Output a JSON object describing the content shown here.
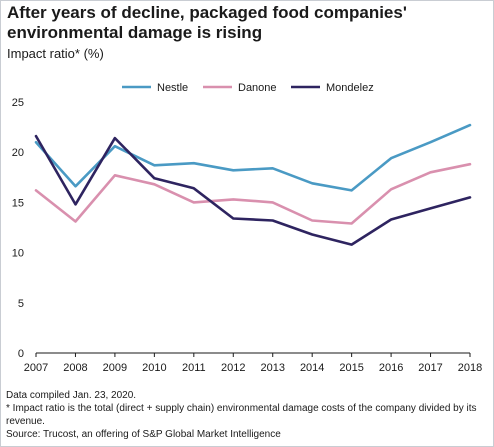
{
  "title": "After years of decline, packaged food companies' environmental damage is rising",
  "subtitle": "Impact ratio* (%)",
  "notes": {
    "compiled": "Data compiled Jan. 23, 2020.",
    "footnote": "* Impact ratio is the total (direct + supply chain) environmental damage costs of the company divided by its revenue.",
    "source": "Source: Trucost, an offering of S&P Global Market Intelligence"
  },
  "chart_data": {
    "type": "line",
    "x": [
      "2007",
      "2008",
      "2009",
      "2010",
      "2011",
      "2012",
      "2013",
      "2014",
      "2015",
      "2016",
      "2017",
      "2018"
    ],
    "ylim": [
      0,
      25
    ],
    "yticks": [
      "0",
      "5",
      "10",
      "15",
      "20",
      "25"
    ],
    "grid": false,
    "legend_position": "top",
    "series": [
      {
        "name": "Nestle",
        "color": "#4a9ac4",
        "values": [
          21.0,
          16.6,
          20.6,
          18.7,
          18.9,
          18.2,
          18.4,
          16.9,
          16.2,
          19.4,
          21.0,
          22.7
        ]
      },
      {
        "name": "Danone",
        "color": "#d990ae",
        "values": [
          16.2,
          13.1,
          17.7,
          16.8,
          15.0,
          15.3,
          15.0,
          13.2,
          12.9,
          16.3,
          18.0,
          18.8
        ]
      },
      {
        "name": "Mondelez",
        "color": "#2e2460",
        "values": [
          21.6,
          14.8,
          21.4,
          17.4,
          16.4,
          13.4,
          13.2,
          11.8,
          10.8,
          13.3,
          14.4,
          15.5
        ]
      }
    ]
  }
}
